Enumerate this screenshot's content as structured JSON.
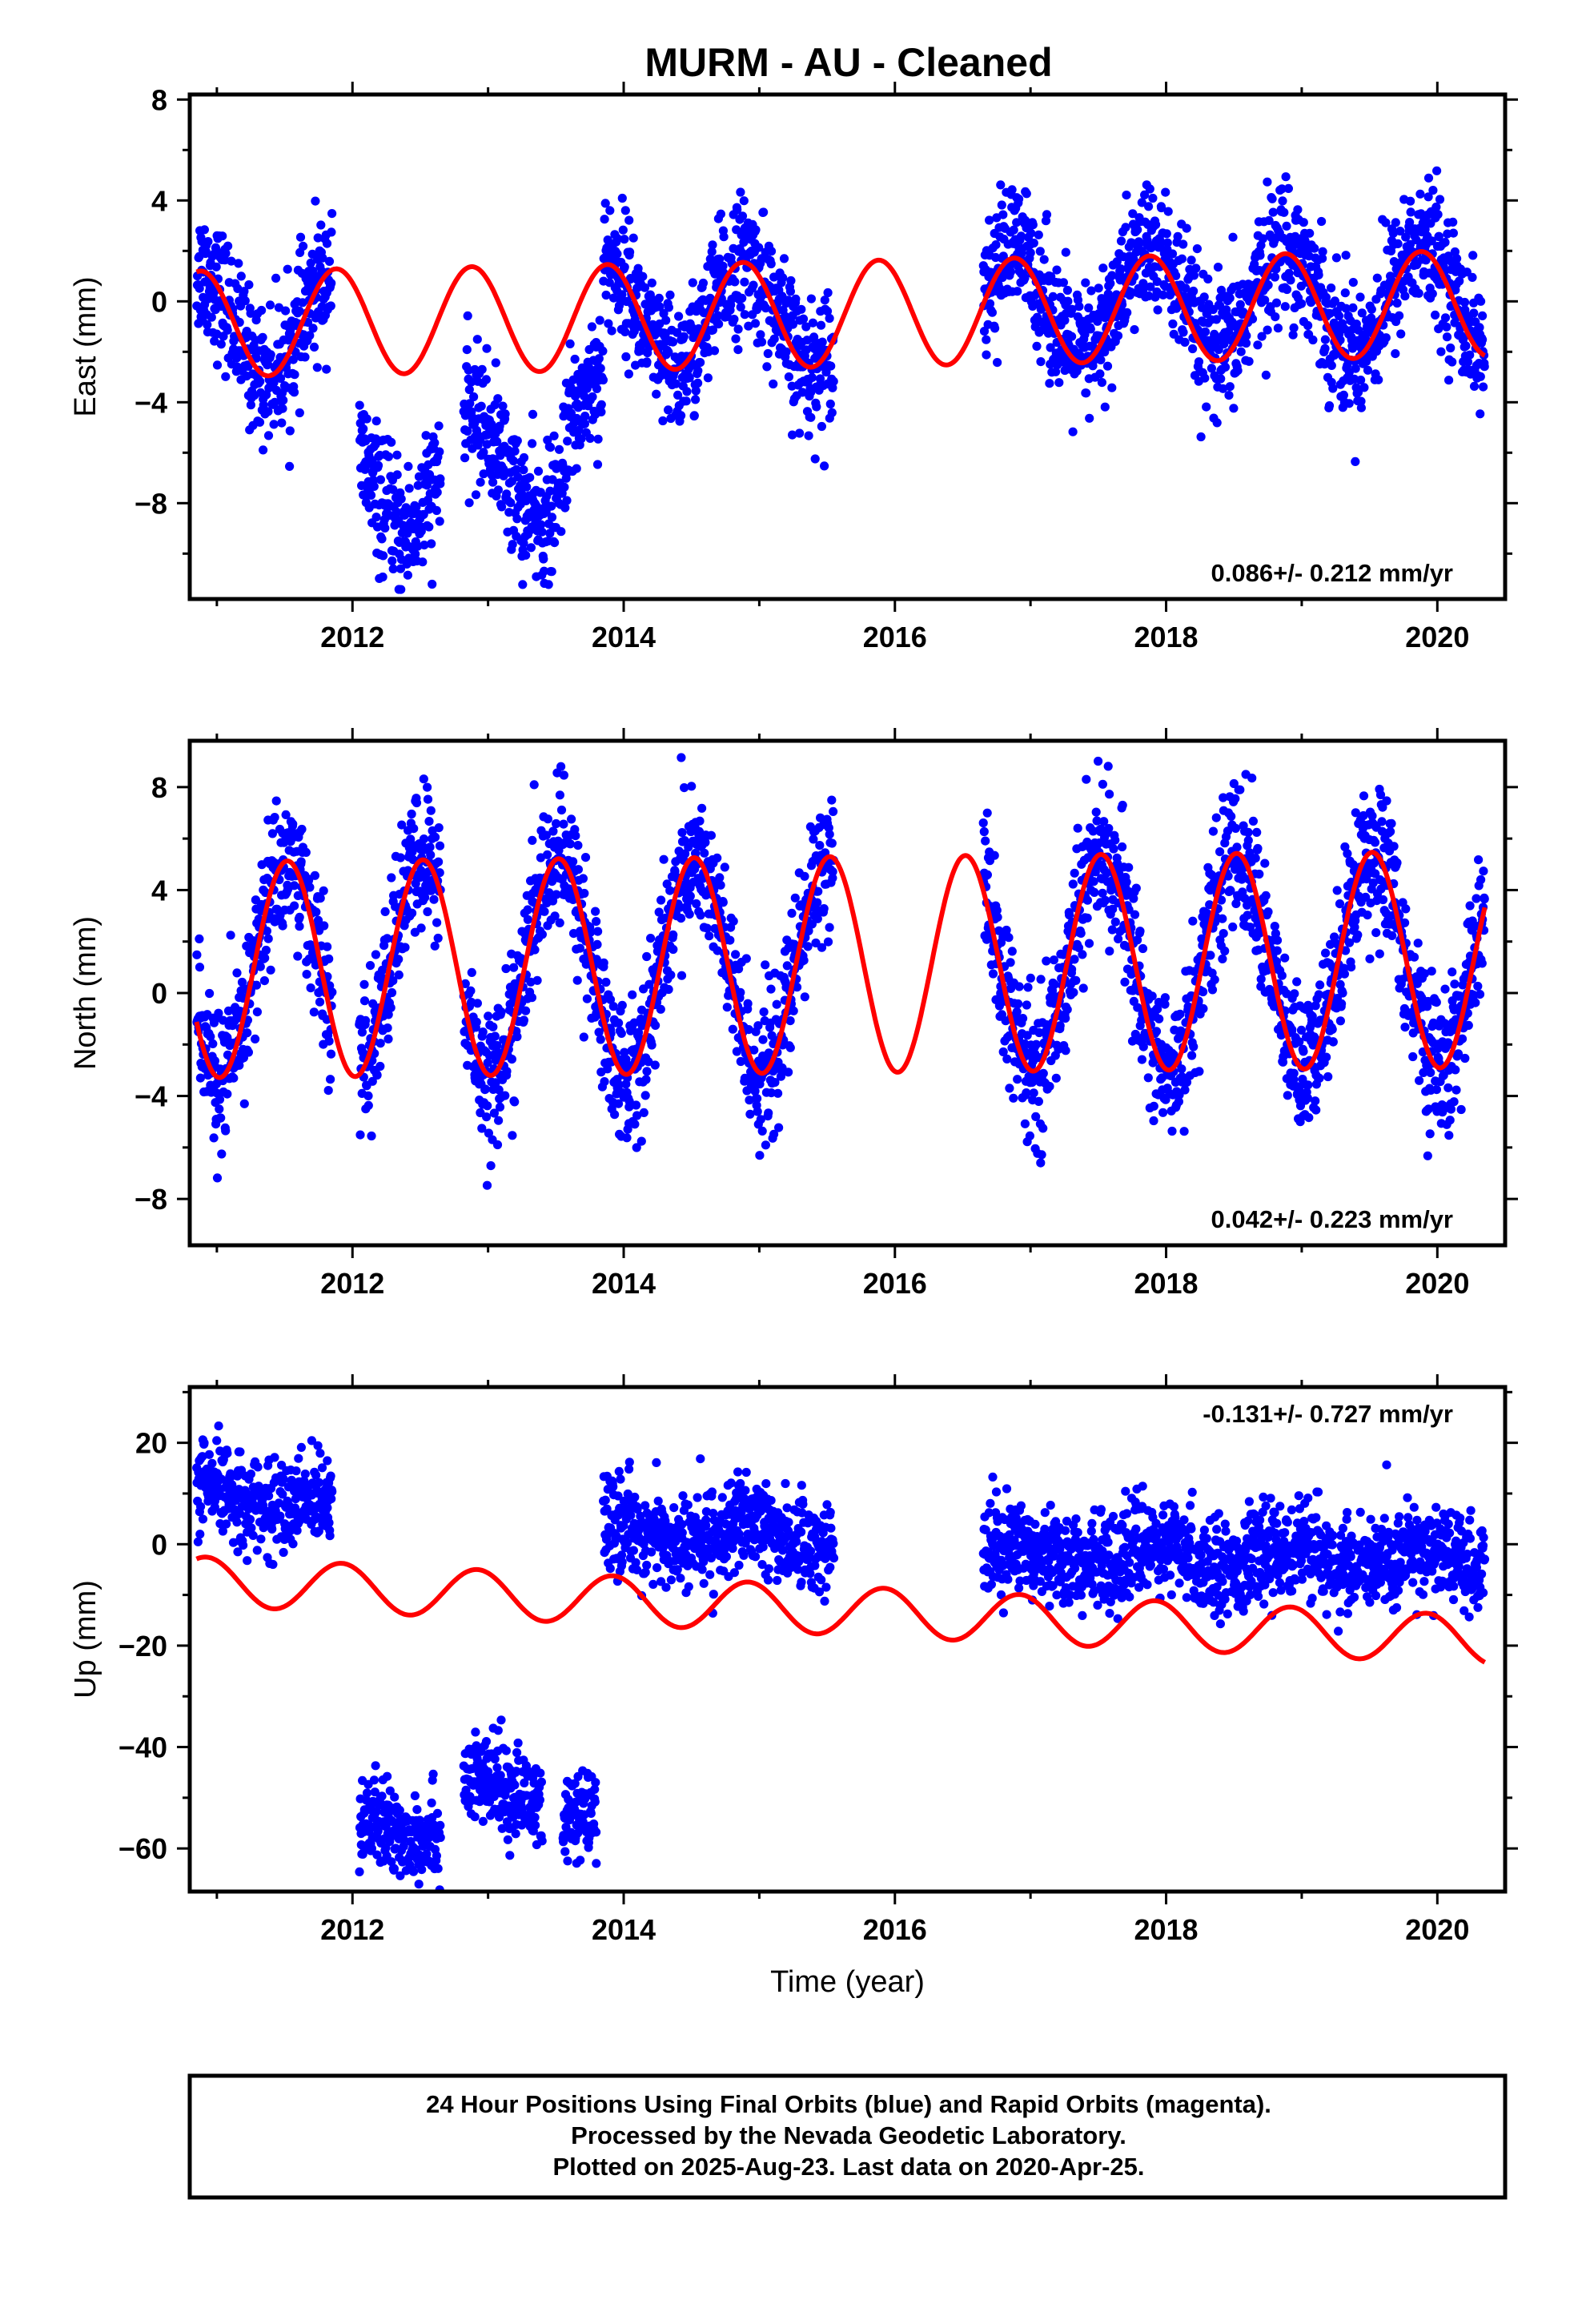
{
  "title": "MURM  - AU - Cleaned",
  "chart_data": [
    {
      "type": "scatter",
      "ylabel": "East (mm)",
      "xlim": [
        2010.8,
        2020.5
      ],
      "ylim": [
        -11.8,
        8.2
      ],
      "yticks": [
        -8,
        -4,
        0,
        4,
        8
      ],
      "xticks": [
        2012,
        2014,
        2016,
        2018,
        2020
      ],
      "rate_label": "0.086+/- 0.212 mm/yr",
      "rate_position": "bottom-right",
      "point_color": "#0000ff",
      "model_color": "#ff0000",
      "model": {
        "offset": -0.5,
        "trend": 0.086,
        "amplitude": 2.1,
        "phase_peak": 0.88
      },
      "series": [
        {
          "segments": [
            [
              2010.85,
              2011.85,
              0.0
            ],
            [
              2012.05,
              2012.65,
              -6.2
            ],
            [
              2012.82,
              2013.55,
              -5.9
            ],
            [
              2013.55,
              2013.85,
              -4.0
            ],
            [
              2013.85,
              2015.55,
              0.0
            ],
            [
              2016.65,
              2020.35,
              0.3
            ]
          ],
          "noise": 1.3
        }
      ]
    },
    {
      "type": "scatter",
      "ylabel": "North (mm)",
      "xlim": [
        2010.8,
        2020.5
      ],
      "ylim": [
        -9.8,
        9.8
      ],
      "yticks": [
        -8,
        -4,
        0,
        4,
        8
      ],
      "xticks": [
        2012,
        2014,
        2016,
        2018,
        2020
      ],
      "rate_label": "0.042+/- 0.223 mm/yr",
      "rate_position": "bottom-right",
      "point_color": "#0000ff",
      "model_color": "#ff0000",
      "model": {
        "offset": 1.1,
        "trend": 0.042,
        "amplitude": 4.2,
        "phase_peak": 0.52
      },
      "series": [
        {
          "segments": [
            [
              2010.85,
              2011.85,
              0.0
            ],
            [
              2012.05,
              2012.65,
              0.0
            ],
            [
              2012.82,
              2013.85,
              0.0
            ],
            [
              2013.85,
              2015.55,
              0.0
            ],
            [
              2016.65,
              2020.35,
              0.0
            ]
          ],
          "noise": 1.4
        }
      ]
    },
    {
      "type": "scatter",
      "ylabel": "Up (mm)",
      "xaxis_label": "Time (year)",
      "xlim": [
        2010.8,
        2020.5
      ],
      "ylim": [
        -68.5,
        31
      ],
      "yticks": [
        -60,
        -40,
        -20,
        0,
        20
      ],
      "xticks": [
        2012,
        2014,
        2016,
        2018,
        2020
      ],
      "rate_label": "-0.131+/- 0.727 mm/yr",
      "rate_position": "top-right",
      "point_color": "#0000ff",
      "model_color": "#ff0000",
      "model": {
        "offset": -7.8,
        "trend": -0.131,
        "amplitude": 4.8,
        "phase_peak": 0.92,
        "stepdown": -1.1
      },
      "series": [
        {
          "segments": [
            [
              2010.85,
              2011.85,
              9.0
            ],
            [
              2012.05,
              2012.65,
              -55.0
            ],
            [
              2012.82,
              2013.4,
              -48.0
            ],
            [
              2013.55,
              2013.8,
              -53.0
            ],
            [
              2013.85,
              2015.55,
              3.5
            ],
            [
              2016.65,
              2020.35,
              1.0
            ]
          ],
          "noise": 4.5
        }
      ]
    }
  ],
  "footer": {
    "line1": "24 Hour Positions Using Final Orbits (blue) and Rapid Orbits (magenta).",
    "line2": "Processed by the Nevada Geodetic Laboratory.",
    "line3": "Plotted on 2025-Aug-23. Last data on 2020-Apr-25."
  }
}
